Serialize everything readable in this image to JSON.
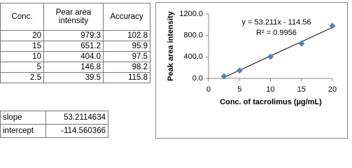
{
  "table": {
    "header": [
      "Conc.",
      "Pear area intensity",
      "Accuracy"
    ],
    "rows": [
      [
        "20",
        "979.3",
        "102.8"
      ],
      [
        "15",
        "651.2",
        "95.9"
      ],
      [
        "10",
        "404.0",
        "97.5"
      ],
      [
        "5",
        "146.8",
        "98.2"
      ],
      [
        "2.5",
        "39.5",
        "115.8"
      ]
    ]
  },
  "summary": {
    "rows": [
      [
        "slope",
        "53.2114634"
      ],
      [
        "intercept",
        "-114.560366"
      ]
    ]
  },
  "chart_data": {
    "type": "scatter",
    "x_label": "Conc. of tacrolimus (µg/mL)",
    "y_label": "Peak area intensity",
    "x": [
      2.5,
      5,
      10,
      15,
      20
    ],
    "values": [
      39.5,
      146.8,
      404.0,
      651.2,
      979.3
    ],
    "color": "#4f81bd",
    "xlim": [
      0,
      20
    ],
    "xticks": [
      0,
      5,
      10,
      15,
      20
    ],
    "ylim": [
      0,
      1200
    ],
    "yticks": [
      {
        "value": 0,
        "label": "0.0"
      },
      {
        "value": 400,
        "label": "400.0"
      },
      {
        "value": 800,
        "label": "800.0"
      },
      {
        "value": 1200,
        "label": "1200.0"
      }
    ],
    "grid": false,
    "trendline": {
      "slope": 53.211,
      "intercept": -114.56,
      "equation": "y = 53.211x - 114.56",
      "r2": "R² = 0.9956",
      "color": "#000000"
    }
  }
}
